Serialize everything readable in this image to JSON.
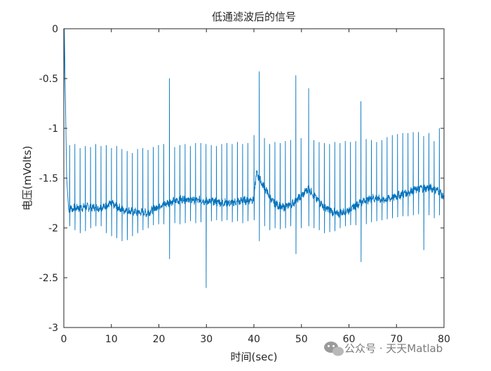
{
  "chart_data": {
    "type": "line",
    "title": "低通滤波后的信号",
    "xlabel": "时间(sec)",
    "ylabel": "电压(mVolts)",
    "xlim": [
      0,
      80
    ],
    "ylim": [
      -3,
      0
    ],
    "xticks": [
      0,
      10,
      20,
      30,
      40,
      50,
      60,
      70,
      80
    ],
    "yticks": [
      0,
      -0.5,
      -1,
      -1.5,
      -2,
      -2.5,
      -3
    ],
    "xtick_labels": [
      "0",
      "10",
      "20",
      "30",
      "40",
      "50",
      "60",
      "70",
      "80"
    ],
    "ytick_labels": [
      "0",
      "-0.5",
      "-1",
      "-1.5",
      "-2",
      "-2.5",
      "-3"
    ],
    "grid": false,
    "line_color": "#0072BD",
    "series": [
      {
        "x": [
          0,
          0.1,
          0.3,
          0.6,
          1.0,
          2.5,
          5.0,
          7.5,
          10.0,
          12.5,
          15.0,
          17.5,
          20.0,
          22.5,
          25.0,
          27.5,
          30.0,
          32.5,
          35.0,
          37.5,
          40.0,
          40.5,
          42.0,
          44.0,
          46.0,
          48.0,
          50.0,
          51.5,
          53.0,
          55.0,
          57.5,
          60.0,
          62.5,
          65.0,
          67.5,
          70.0,
          72.5,
          75.0,
          77.5,
          79.0,
          80.0
        ],
        "y": [
          -0.9,
          0,
          -0.6,
          -1.5,
          -1.81,
          -1.8,
          -1.79,
          -1.8,
          -1.76,
          -1.82,
          -1.84,
          -1.85,
          -1.78,
          -1.74,
          -1.71,
          -1.72,
          -1.73,
          -1.74,
          -1.75,
          -1.73,
          -1.71,
          -1.45,
          -1.58,
          -1.74,
          -1.8,
          -1.76,
          -1.68,
          -1.6,
          -1.7,
          -1.8,
          -1.86,
          -1.82,
          -1.74,
          -1.7,
          -1.72,
          -1.68,
          -1.64,
          -1.6,
          -1.6,
          -1.63,
          -1.7
        ]
      }
    ],
    "beats": {
      "x": [
        0.3,
        1.2,
        2.3,
        3.4,
        4.5,
        5.6,
        6.7,
        7.8,
        8.9,
        10.0,
        11.1,
        12.2,
        13.3,
        14.4,
        15.5,
        16.6,
        17.7,
        18.8,
        19.9,
        21.0,
        22.2,
        23.3,
        24.4,
        25.5,
        26.6,
        27.7,
        28.8,
        29.9,
        31.0,
        32.1,
        33.2,
        34.3,
        35.4,
        36.5,
        37.6,
        38.7,
        40.0,
        41.1,
        42.2,
        43.3,
        44.4,
        45.5,
        46.6,
        47.7,
        48.8,
        49.9,
        51.5,
        52.6,
        53.7,
        54.8,
        55.9,
        57.0,
        58.1,
        59.2,
        60.3,
        61.4,
        62.5,
        63.6,
        64.7,
        65.8,
        66.9,
        68.0,
        69.1,
        70.2,
        71.3,
        72.4,
        73.5,
        74.6,
        75.7,
        76.8,
        77.9,
        79.0
      ],
      "peak": [
        -0.5,
        -1.17,
        -1.16,
        -1.2,
        -1.18,
        -1.19,
        -1.16,
        -1.18,
        -1.17,
        -1.2,
        -1.18,
        -1.21,
        -1.23,
        -1.25,
        -1.21,
        -1.2,
        -1.22,
        -1.19,
        -1.17,
        -1.16,
        -0.5,
        -1.19,
        -1.17,
        -1.16,
        -1.18,
        -1.15,
        -1.15,
        -1.16,
        -1.17,
        -1.18,
        -1.16,
        -1.15,
        -1.16,
        -1.14,
        -1.16,
        -1.15,
        -1.07,
        -0.43,
        -1.1,
        -1.16,
        -1.14,
        -1.15,
        -1.13,
        -1.12,
        -0.47,
        -1.1,
        -0.6,
        -1.12,
        -1.14,
        -1.15,
        -1.16,
        -1.14,
        -1.15,
        -1.13,
        -1.14,
        -1.13,
        -0.73,
        -1.11,
        -1.12,
        -1.14,
        -1.12,
        -1.09,
        -1.07,
        -1.06,
        -1.05,
        -1.05,
        -1.04,
        -1.04,
        -1.08,
        -1.05,
        -1.13,
        -1.0
      ],
      "trough": [
        -1.95,
        -1.98,
        -2.02,
        -2.05,
        -2.03,
        -2.0,
        -1.98,
        -1.98,
        -2.05,
        -2.08,
        -2.1,
        -2.13,
        -2.12,
        -2.08,
        -2.05,
        -2.02,
        -2.0,
        -1.97,
        -1.96,
        -1.96,
        -2.31,
        -1.95,
        -1.96,
        -1.95,
        -1.93,
        -1.95,
        -1.94,
        -2.6,
        -1.93,
        -1.92,
        -1.93,
        -1.92,
        -1.94,
        -1.93,
        -1.95,
        -1.93,
        -1.92,
        -2.13,
        -1.98,
        -2.02,
        -2.0,
        -2.01,
        -2.0,
        -1.98,
        -2.26,
        -2.0,
        -1.98,
        -2.0,
        -2.02,
        -2.05,
        -2.04,
        -2.03,
        -2.0,
        -1.98,
        -1.97,
        -1.97,
        -2.34,
        -1.96,
        -1.94,
        -1.93,
        -1.92,
        -1.91,
        -1.9,
        -1.89,
        -1.88,
        -1.88,
        -1.87,
        -1.86,
        -2.22,
        -1.87,
        -1.9,
        -1.87
      ]
    }
  },
  "watermark": {
    "icon": "wechat-icon",
    "text": "公众号 · 天天Matlab"
  }
}
